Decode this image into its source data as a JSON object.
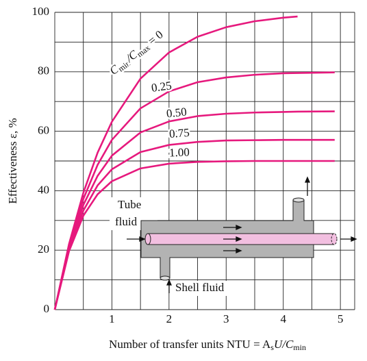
{
  "chart_data": {
    "type": "line",
    "x_label": [
      "Number of transfer units NTU = A",
      "s",
      "U/C",
      "min"
    ],
    "y_label": "Effectiveness ε, %",
    "ratio_label": [
      "C",
      "min",
      "/C",
      "max",
      " = "
    ],
    "x": [
      0,
      0.25,
      0.5,
      0.75,
      1,
      1.5,
      2,
      2.5,
      3,
      3.5,
      4,
      4.25,
      4.9
    ],
    "series": [
      {
        "name": "0",
        "color": "#e6197d",
        "values": [
          0,
          22.1,
          39.3,
          52.8,
          63.2,
          77.7,
          86.5,
          91.8,
          95.0,
          97.0,
          98.2,
          98.6,
          null
        ]
      },
      {
        "name": "0.25",
        "color": "#e6197d",
        "values": [
          0,
          21.5,
          37.2,
          48.7,
          57.1,
          67.7,
          73.4,
          76.5,
          78.1,
          79.0,
          79.5,
          79.6,
          79.8
        ]
      },
      {
        "name": "0.50",
        "color": "#e6197d",
        "values": [
          0,
          20.8,
          35.2,
          45.0,
          51.8,
          59.6,
          63.3,
          65.1,
          65.9,
          66.3,
          66.5,
          66.6,
          66.7
        ]
      },
      {
        "name": "0.75",
        "color": "#e6197d",
        "values": [
          0,
          20.3,
          33.3,
          41.8,
          47.2,
          53.0,
          55.4,
          56.4,
          56.9,
          57.0,
          57.1,
          57.1,
          57.1
        ]
      },
      {
        "name": "1.00",
        "color": "#e6197d",
        "values": [
          0,
          19.7,
          31.6,
          38.8,
          43.2,
          47.5,
          49.1,
          49.7,
          49.9,
          50.0,
          50.0,
          50.0,
          50.0
        ]
      }
    ],
    "xlim": [
      0,
      5.25
    ],
    "ylim": [
      0,
      100
    ],
    "xticks": [
      1,
      2,
      3,
      4,
      5
    ],
    "yticks": [
      0,
      20,
      40,
      60,
      80,
      100
    ],
    "grid": true
  },
  "diagram": {
    "tube_label": [
      "Tube",
      "fluid"
    ],
    "shell_label": "Shell fluid"
  }
}
